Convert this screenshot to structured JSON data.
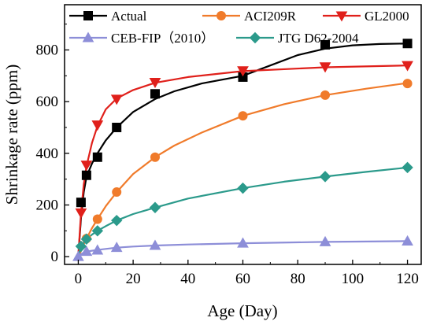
{
  "chart_data": {
    "type": "line",
    "title": "",
    "xlabel": "Age (Day)",
    "ylabel": "Shrinkage rate (ppm)",
    "xlim": [
      -5,
      125
    ],
    "ylim": [
      -30,
      975
    ],
    "xticks": [
      0,
      20,
      40,
      60,
      80,
      100,
      120
    ],
    "yticks": [
      0,
      200,
      400,
      600,
      800
    ],
    "grid": false,
    "legend_position": "top",
    "series": [
      {
        "name": "Actual",
        "color": "#000000",
        "marker": "square",
        "x": [
          1,
          3,
          7,
          14,
          28,
          60,
          90,
          120
        ],
        "y": [
          210,
          315,
          385,
          500,
          630,
          695,
          820,
          825
        ],
        "curve_x": [
          0,
          1,
          2,
          3,
          5,
          7,
          10,
          14,
          20,
          28,
          35,
          45,
          55,
          60,
          70,
          80,
          90,
          100,
          110,
          120
        ],
        "curve_y": [
          0,
          150,
          250,
          310,
          360,
          400,
          450,
          500,
          560,
          610,
          640,
          670,
          690,
          700,
          740,
          780,
          805,
          818,
          823,
          825
        ]
      },
      {
        "name": "ACI209R",
        "color": "#f07b2b",
        "marker": "circle",
        "x": [
          3,
          7,
          14,
          28,
          60,
          90,
          120
        ],
        "y": [
          70,
          145,
          250,
          385,
          545,
          625,
          670
        ],
        "curve_x": [
          0,
          1,
          2,
          3,
          5,
          7,
          10,
          14,
          20,
          28,
          35,
          45,
          60,
          75,
          90,
          105,
          120
        ],
        "curve_y": [
          0,
          22,
          48,
          70,
          110,
          145,
          195,
          250,
          320,
          385,
          430,
          480,
          545,
          590,
          625,
          650,
          672
        ]
      },
      {
        "name": "GL2000",
        "color": "#e0201b",
        "marker": "triangle-down",
        "x": [
          1,
          3,
          7,
          14,
          28,
          60,
          90,
          120
        ],
        "y": [
          170,
          355,
          510,
          610,
          675,
          720,
          735,
          740
        ],
        "curve_x": [
          0,
          1,
          2,
          3,
          5,
          7,
          10,
          14,
          20,
          28,
          40,
          60,
          90,
          120
        ],
        "curve_y": [
          0,
          170,
          280,
          350,
          440,
          505,
          570,
          612,
          645,
          673,
          695,
          718,
          733,
          740
        ]
      },
      {
        "name": "CEB-FIP（2010）",
        "color": "#8d8ed8",
        "marker": "triangle-up",
        "x": [
          0,
          3,
          7,
          14,
          28,
          60,
          90,
          120
        ],
        "y": [
          0,
          20,
          25,
          35,
          43,
          52,
          57,
          60
        ],
        "curve_x": [
          0,
          1,
          2,
          3,
          5,
          7,
          10,
          14,
          20,
          28,
          40,
          60,
          90,
          120
        ],
        "curve_y": [
          0,
          10,
          16,
          20,
          23,
          26,
          30,
          35,
          39,
          43,
          47,
          52,
          57,
          60
        ]
      },
      {
        "name": "JTG D62-2004",
        "color": "#2b9a8b",
        "marker": "diamond",
        "x": [
          1,
          3,
          7,
          14,
          28,
          60,
          90,
          120
        ],
        "y": [
          40,
          68,
          100,
          140,
          190,
          265,
          310,
          345
        ],
        "curve_x": [
          0,
          1,
          2,
          3,
          5,
          7,
          10,
          14,
          20,
          28,
          40,
          60,
          75,
          90,
          105,
          120
        ],
        "curve_y": [
          0,
          40,
          55,
          68,
          85,
          100,
          118,
          140,
          165,
          190,
          225,
          265,
          290,
          310,
          328,
          345
        ]
      }
    ]
  }
}
